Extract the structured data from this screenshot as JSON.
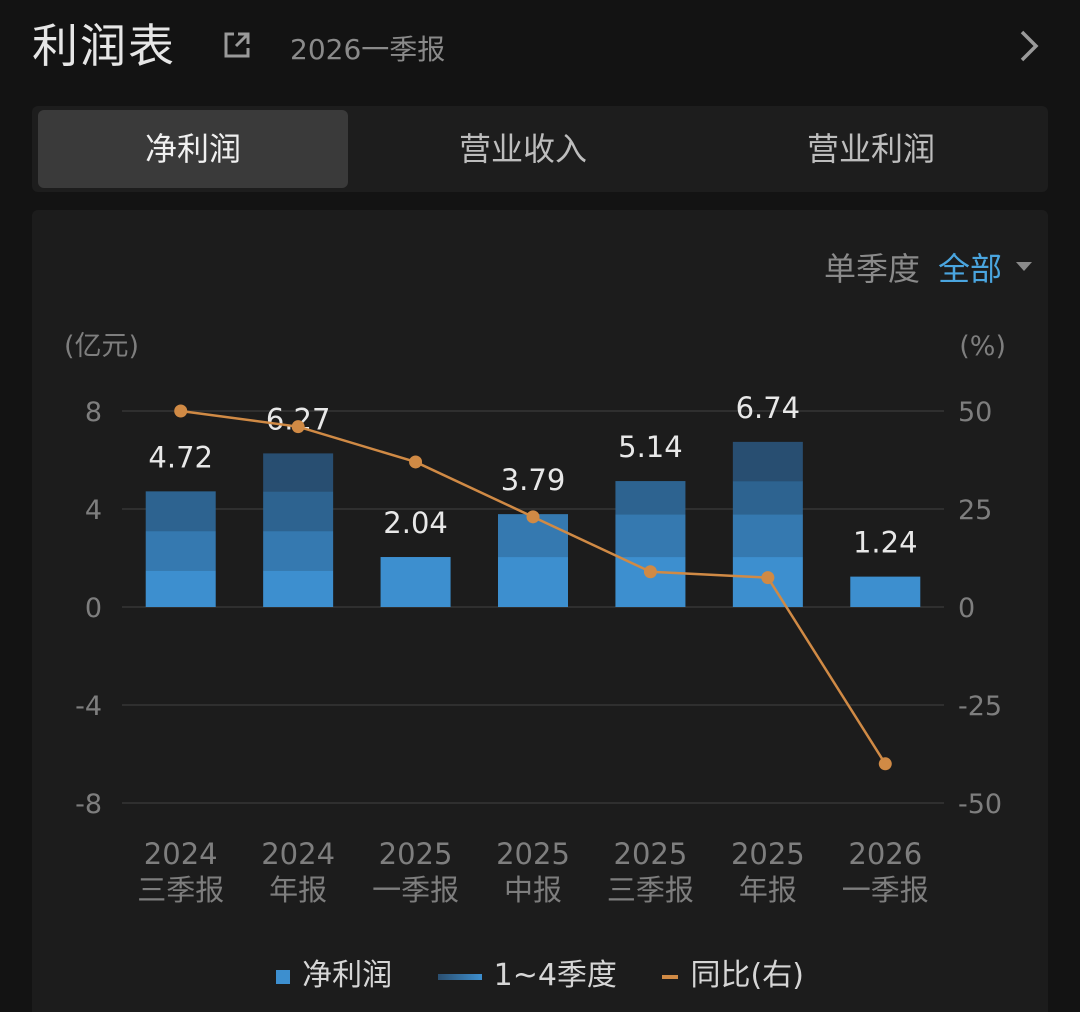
{
  "header": {
    "title": "利润表",
    "period": "2026一季报"
  },
  "tabs": [
    {
      "label": "净利润",
      "active": true
    },
    {
      "label": "营业收入",
      "active": false
    },
    {
      "label": "营业利润",
      "active": false
    }
  ],
  "filter": {
    "label": "单季度",
    "value": "全部"
  },
  "legend": {
    "net_profit": "净利润",
    "quarters": "1~4季度",
    "yoy": "同比(右)"
  },
  "colors": {
    "bar_q1": "#3d8fcf",
    "bar_q2": "#3579b0",
    "bar_q3": "#2d6390",
    "bar_q4": "#284e71",
    "line": "#d08a45",
    "accent": "#4aa5df"
  },
  "chart_data": {
    "type": "bar",
    "categories": [
      [
        "2024",
        "三季报"
      ],
      [
        "2024",
        "年报"
      ],
      [
        "2025",
        "一季报"
      ],
      [
        "2025",
        "中报"
      ],
      [
        "2025",
        "三季报"
      ],
      [
        "2025",
        "年报"
      ],
      [
        "2026",
        "一季报"
      ]
    ],
    "series": [
      {
        "name": "净利润",
        "values": [
          4.72,
          6.27,
          2.04,
          3.79,
          5.14,
          6.74,
          1.24
        ],
        "labels": [
          "4.72",
          "6.27",
          "2.04",
          "3.79",
          "5.14",
          "6.74",
          "1.24"
        ]
      },
      {
        "name": "同比(右)",
        "axis": "right",
        "values": [
          50,
          46,
          37,
          23,
          9,
          7.5,
          -40
        ]
      }
    ],
    "quarter_breakdown": [
      [
        1.5,
        1.6,
        1.62
      ],
      [
        1.5,
        1.6,
        1.62,
        1.55
      ],
      [
        2.04
      ],
      [
        2.04,
        1.75
      ],
      [
        2.04,
        1.75,
        1.35
      ],
      [
        2.04,
        1.75,
        1.35,
        1.6
      ],
      [
        1.24
      ]
    ],
    "ylabel_left": "(亿元)",
    "ylabel_right": "(%)",
    "ylim_left": [
      -8,
      8
    ],
    "ylim_right": [
      -50,
      50
    ],
    "yticks_left": [
      "8",
      "4",
      "0",
      "-4",
      "-8"
    ],
    "yticks_right": [
      "50",
      "25",
      "0",
      "-25",
      "-50"
    ],
    "grid": true,
    "legend_position": "bottom"
  }
}
